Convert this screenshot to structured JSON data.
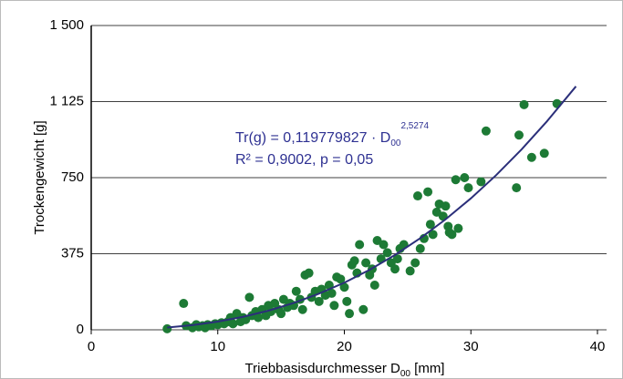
{
  "chart_data": {
    "type": "scatter",
    "y_label": "Trockengewicht [g]",
    "x_label": [
      "Triebbasisdurchmesser D",
      "00",
      " [mm]"
    ],
    "equation": [
      "Tr(g) = 0,119779827 · D",
      "00",
      "2,5274"
    ],
    "r_squared": "R² = 0,9002, p = 0,05",
    "x": [
      6,
      7.3,
      7.5,
      8,
      8.3,
      8.5,
      8.8,
      9,
      9.2,
      9.5,
      9.8,
      10,
      10.3,
      10.5,
      10.8,
      11,
      11.2,
      11.5,
      11.8,
      12,
      12.2,
      12.5,
      12.7,
      13,
      13.2,
      13.5,
      13.8,
      14,
      14.2,
      14.5,
      14.8,
      15,
      15.2,
      15.5,
      15.7,
      16,
      16.2,
      16.5,
      16.7,
      16.9,
      17.2,
      17.4,
      17.7,
      18,
      18.2,
      18.5,
      18.8,
      19,
      19.2,
      19.4,
      19.7,
      20,
      20.2,
      20.4,
      20.6,
      20.8,
      21,
      21.2,
      21.5,
      21.7,
      22,
      22.2,
      22.4,
      22.6,
      22.9,
      23.1,
      23.4,
      23.7,
      24,
      24.2,
      24.4,
      24.7,
      25.2,
      25.6,
      25.8,
      26,
      26.3,
      26.6,
      26.8,
      27,
      27.3,
      27.5,
      27.8,
      28,
      28.2,
      28.3,
      28.5,
      28.8,
      29,
      29.5,
      29.8,
      30.8,
      31.2,
      33.6,
      33.8,
      34.2,
      34.8,
      35.8,
      36.8
    ],
    "values": [
      5,
      130,
      20,
      10,
      25,
      15,
      20,
      10,
      25,
      20,
      30,
      25,
      35,
      30,
      40,
      60,
      30,
      80,
      40,
      60,
      50,
      160,
      70,
      90,
      60,
      100,
      70,
      120,
      90,
      130,
      100,
      80,
      150,
      110,
      130,
      120,
      190,
      150,
      100,
      270,
      280,
      160,
      190,
      140,
      200,
      170,
      220,
      180,
      120,
      260,
      250,
      210,
      140,
      80,
      320,
      340,
      280,
      420,
      100,
      330,
      270,
      300,
      220,
      440,
      350,
      420,
      380,
      330,
      300,
      350,
      400,
      420,
      290,
      330,
      660,
      400,
      450,
      680,
      520,
      470,
      580,
      620,
      560,
      610,
      510,
      480,
      470,
      740,
      500,
      750,
      700,
      730,
      980,
      700,
      960,
      1110,
      850,
      870,
      1115
    ],
    "color": "#1d7a35",
    "fit": {
      "x": [
        6,
        8,
        10,
        12,
        14,
        16,
        18,
        20,
        22,
        24,
        26,
        28,
        30,
        32,
        34,
        36,
        38.3
      ],
      "values": [
        11.1,
        22.9,
        40.4,
        64.0,
        94.4,
        132.3,
        178.2,
        232.5,
        295.9,
        368.8,
        451.5,
        544.5,
        648.1,
        762.6,
        889.1,
        1027,
        1200
      ],
      "color": "#2b2f7a"
    },
    "xlim": [
      0,
      40
    ],
    "xticks": [
      0,
      10,
      20,
      30,
      40
    ],
    "ylim": [
      0,
      1500
    ],
    "yticks": [
      0,
      375,
      750,
      {
        "value": 1125,
        "label": "1 125"
      },
      {
        "value": 1500,
        "label": "1 500"
      }
    ],
    "grid": true
  }
}
